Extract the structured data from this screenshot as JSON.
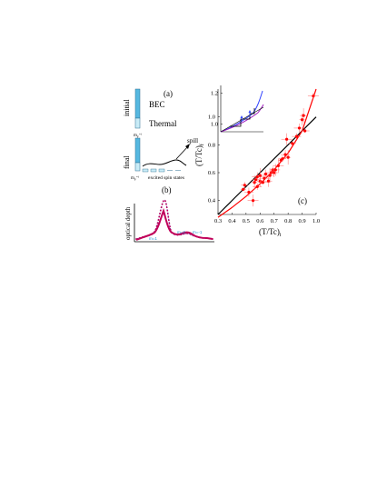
{
  "panel_a": {
    "label": "(a)",
    "initial_label": "initial",
    "final_label": "final",
    "bec_label": "BEC",
    "thermal_label": "Thermal",
    "m_top_label": "m",
    "m_top_sub": "F",
    "m_top_sup": "=i",
    "m_bottom_label": "m",
    "m_bottom_sub": "F",
    "m_bottom_sup": "=i",
    "spill_label": "spill",
    "excited_label": "excited spin states"
  },
  "panel_b": {
    "label": "(b)",
    "ylabel": "optical depth",
    "m1": "m=1",
    "m2": "m=2",
    "m3": "m=-1"
  },
  "panel_c": {
    "label": "(c)",
    "ylabel": "(T/Tc)",
    "ylabel_sub": "f",
    "xlabel": "(T/Tc)",
    "xlabel_sub": "i"
  },
  "chart_data": [
    {
      "type": "scatter",
      "title": "",
      "xlabel": "(T/Tc)i",
      "ylabel": "(T/Tc)f",
      "xlim": [
        0.3,
        1.0
      ],
      "ylim": [
        0.3,
        1.2
      ],
      "xticks": [
        "0.3",
        "0.4",
        "0.5",
        "0.6",
        "0.7",
        "0.8",
        "0.9",
        "1.0"
      ],
      "yticks": [
        "0.4",
        "0.6",
        "0.8",
        "1.0"
      ],
      "series": [
        {
          "values": [
            [
              0.48,
              0.48
            ],
            [
              0.49,
              0.51
            ],
            [
              0.52,
              0.46
            ],
            [
              0.55,
              0.4
            ],
            [
              0.56,
              0.53
            ],
            [
              0.57,
              0.55
            ],
            [
              0.58,
              0.5
            ],
            [
              0.58,
              0.57
            ],
            [
              0.6,
              0.54
            ],
            [
              0.6,
              0.58
            ],
            [
              0.62,
              0.53
            ],
            [
              0.63,
              0.56
            ],
            [
              0.64,
              0.59
            ],
            [
              0.66,
              0.54
            ],
            [
              0.67,
              0.58
            ],
            [
              0.68,
              0.6
            ],
            [
              0.69,
              0.62
            ],
            [
              0.7,
              0.6
            ],
            [
              0.71,
              0.62
            ],
            [
              0.73,
              0.65
            ],
            [
              0.75,
              0.69
            ],
            [
              0.76,
              0.7
            ],
            [
              0.78,
              0.73
            ],
            [
              0.79,
              0.84
            ],
            [
              0.8,
              0.71
            ],
            [
              0.83,
              0.81
            ],
            [
              0.86,
              0.86
            ],
            [
              0.88,
              0.92
            ],
            [
              0.9,
              0.98
            ],
            [
              0.91,
              1.01
            ],
            [
              0.92,
              0.9
            ],
            [
              0.98,
              1.15
            ]
          ]
        }
      ],
      "lines": [
        {
          "color": "#000000",
          "points": [
            [
              0.3,
              0.3
            ],
            [
              1.0,
              1.0
            ]
          ]
        },
        {
          "color": "#ff0000",
          "points": [
            [
              0.3,
              0.28
            ],
            [
              0.4,
              0.35
            ],
            [
              0.5,
              0.43
            ],
            [
              0.6,
              0.52
            ],
            [
              0.7,
              0.62
            ],
            [
              0.8,
              0.74
            ],
            [
              0.9,
              0.9
            ],
            [
              1.0,
              1.2
            ]
          ]
        }
      ]
    },
    {
      "type": "line",
      "title": "",
      "xlabel": "",
      "ylabel": "",
      "ylim": [
        0.95,
        1.25
      ],
      "yticks": [
        "1.0",
        "1.2"
      ]
    }
  ],
  "colors": {
    "red": "#ff0000",
    "bar_blue": "#56b8e0",
    "bar_light": "#c9ecf7",
    "profile_magenta": "#c0005a",
    "profile_purple": "#7030a0",
    "inset_blue": "#3344ff",
    "inset_purple": "#a020c0"
  }
}
